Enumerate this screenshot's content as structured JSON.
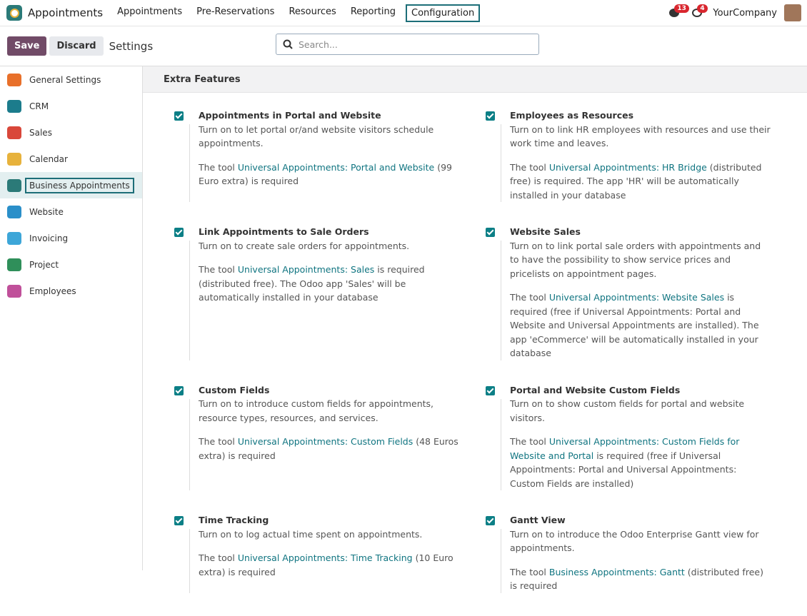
{
  "navbar": {
    "app": "Appointments",
    "menu": [
      "Appointments",
      "Pre-Reservations",
      "Resources",
      "Reporting",
      "Configuration"
    ],
    "messages": 13,
    "activities": 4,
    "company": "YourCompany"
  },
  "controls": {
    "save": "Save",
    "discard": "Discard",
    "breadcrumb": "Settings",
    "search_placeholder": "Search..."
  },
  "sidebar": [
    "General Settings",
    "CRM",
    "Sales",
    "Calendar",
    "Business Appointments",
    "Website",
    "Invoicing",
    "Project",
    "Employees"
  ],
  "section": {
    "title": "Extra Features",
    "features": [
      {
        "title": "Appointments in Portal and Website",
        "description": "Turn on to let portal or/and website visitors schedule appointments.",
        "note": {
          "prefix": "The tool ",
          "link": "Universal Appointments: Portal and Website",
          "suffix": " (99 Euro extra) is required"
        }
      },
      {
        "title": "Employees as Resources",
        "description": "Turn on to link HR employees with resources and use their work time and leaves.",
        "note": {
          "prefix": "The tool ",
          "link": "Universal Appointments: HR Bridge",
          "suffix": " (distributed free) is required. The app 'HR' will be automatically installed in your database"
        }
      },
      {
        "title": "Link Appointments to Sale Orders",
        "description": "Turn on to create sale orders for appointments.",
        "note": {
          "prefix": "The tool ",
          "link": "Universal Appointments: Sales",
          "suffix": " is required (distributed free). The Odoo app 'Sales' will be automatically installed in your database"
        }
      },
      {
        "title": "Website Sales",
        "description": "Turn on to link portal sale orders with appointments and to have the possibility to show service prices and pricelists on appointment pages.",
        "note": {
          "prefix": "The tool ",
          "link": "Universal Appointments: Website Sales",
          "suffix": " is required (free if Universal Appointments: Portal and Website and Universal Appointments are installed). The app 'eCommerce' will be automatically installed in your database"
        }
      },
      {
        "title": "Custom Fields",
        "description": "Turn on to introduce custom fields for appointments, resource types, resources, and services.",
        "note": {
          "prefix": "The tool ",
          "link": "Universal Appointments: Custom Fields",
          "suffix": " (48 Euros extra) is required"
        }
      },
      {
        "title": "Portal and Website Custom Fields",
        "description": "Turn on to show custom fields for portal and website visitors.",
        "note": {
          "prefix": "The tool ",
          "link": "Universal Appointments: Custom Fields for Website and Portal",
          "suffix": " is required (free if Universal Appointments: Portal and Universal Appointments: Custom Fields are installed)"
        }
      },
      {
        "title": "Time Tracking",
        "description": "Turn on to log actual time spent on appointments.",
        "note": {
          "prefix": "The tool ",
          "link": "Universal Appointments: Time Tracking",
          "suffix": " (10 Euro extra) is required"
        }
      },
      {
        "title": "Gantt View",
        "description": "Turn on to introduce the Odoo Enterprise Gantt view for appointments.",
        "note": {
          "prefix": "The tool ",
          "link": "Business Appointments: Gantt",
          "suffix": " (distributed free) is required"
        }
      }
    ]
  }
}
